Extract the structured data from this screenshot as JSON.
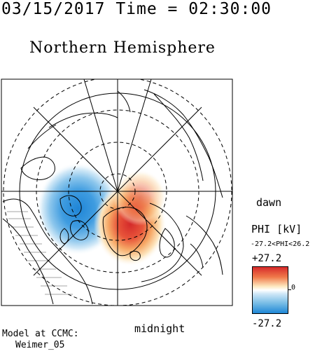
{
  "timestamp": "03/15/2017 Time = 02:30:00",
  "title": "Northern Hemisphere",
  "map": {
    "directions": {
      "dawn": "dawn",
      "midnight": "midnight"
    }
  },
  "colorbar": {
    "label": "PHI [kV]",
    "range_text": "-27.2<PHI<26.2",
    "max_label": "+27.2",
    "zero_label": "0",
    "min_label": "-27.2",
    "colors": {
      "positive": "#d62a2a",
      "neutral": "#ffffff",
      "negative": "#1f87d6"
    }
  },
  "model": {
    "line1": "Model at CCMC:",
    "line2": "Weimer_05"
  }
}
